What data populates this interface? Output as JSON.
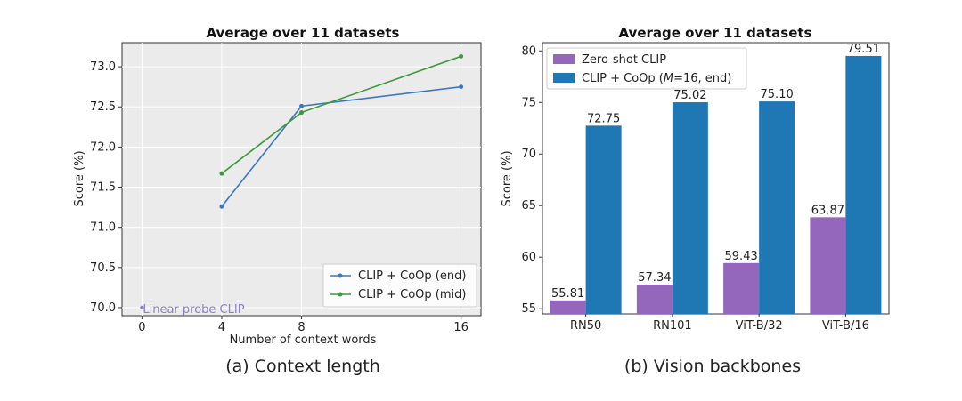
{
  "chart_data": [
    {
      "type": "line",
      "title": "Average over 11 datasets",
      "xlabel": "Number of context words",
      "ylabel": "Score (%)",
      "caption": "(a) Context length",
      "xlim": [
        -1,
        17
      ],
      "ylim": [
        69.9,
        73.3
      ],
      "xticks": [
        0,
        4,
        8,
        16
      ],
      "yticks": [
        70.0,
        70.5,
        71.0,
        71.5,
        72.0,
        72.5,
        73.0
      ],
      "ytick_labels": [
        "70.0",
        "70.5",
        "71.0",
        "71.5",
        "72.0",
        "72.5",
        "73.0"
      ],
      "grid": true,
      "legend_position": "lower-right",
      "series": [
        {
          "name": "CLIP + CoOp (end)",
          "color": "#3a78c4",
          "x": [
            4,
            8,
            16
          ],
          "y": [
            71.26,
            72.51,
            72.75
          ]
        },
        {
          "name": "CLIP + CoOp (mid)",
          "color": "#3c9a3c",
          "x": [
            4,
            8,
            16
          ],
          "y": [
            71.67,
            72.43,
            73.13
          ]
        }
      ],
      "baseline": {
        "name": "Linear probe CLIP",
        "x": 0,
        "y": 70.0,
        "color": "#8a7fbf"
      }
    },
    {
      "type": "bar",
      "title": "Average over 11 datasets",
      "xlabel": "",
      "ylabel": "Score (%)",
      "caption": "(b) Vision backbones",
      "categories": [
        "RN50",
        "RN101",
        "ViT-B/32",
        "ViT-B/16"
      ],
      "ylim": [
        54.5,
        80.8
      ],
      "yticks": [
        55,
        60,
        65,
        70,
        75,
        80
      ],
      "legend_position": "top-left",
      "series": [
        {
          "name": "Zero-shot CLIP",
          "color": "#9467bd",
          "values": [
            55.81,
            57.34,
            59.43,
            63.87
          ],
          "labels": [
            "55.81",
            "57.34",
            "59.43",
            "63.87"
          ]
        },
        {
          "name": "CLIP + CoOp (M=16, end)",
          "legend_prefix": "CLIP + CoOp (",
          "legend_math": "M",
          "legend_suffix": "=16, end)",
          "color": "#1f77b4",
          "values": [
            72.75,
            75.02,
            75.1,
            79.51
          ],
          "labels": [
            "72.75",
            "75.02",
            "75.10",
            "79.51"
          ]
        }
      ]
    }
  ]
}
